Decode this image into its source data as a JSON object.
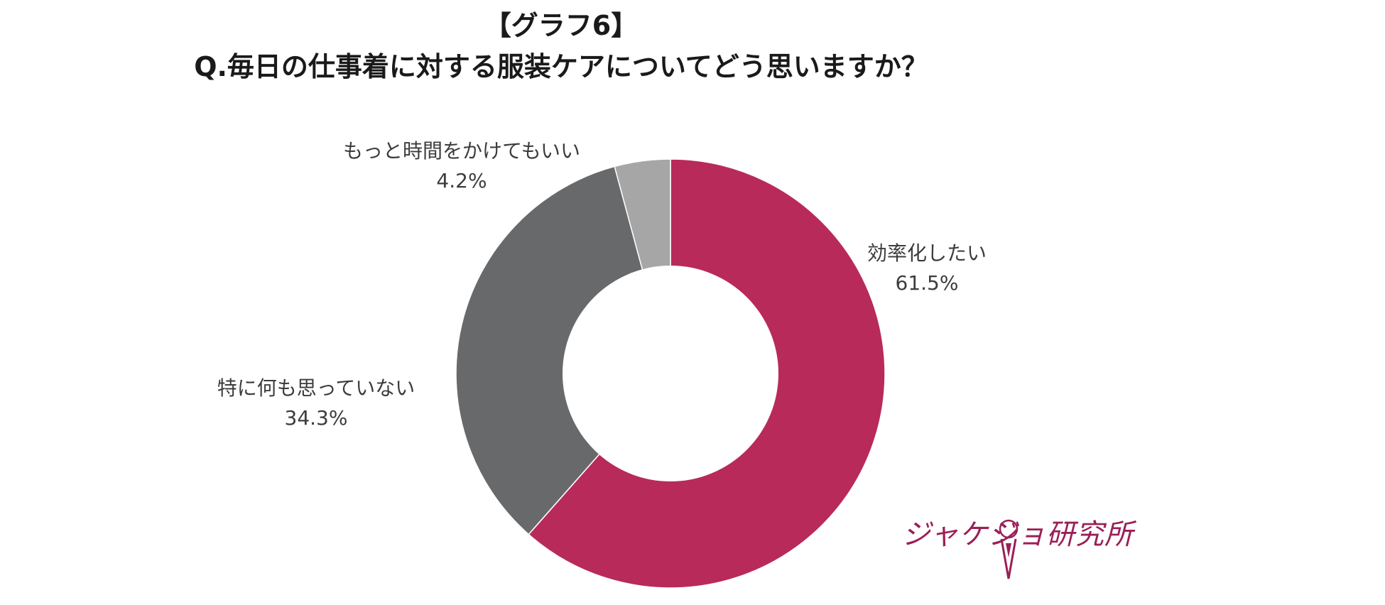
{
  "header": {
    "line1": "【グラフ6】",
    "line2": "Q.毎日の仕事着に対する服装ケアについてどう思いますか？"
  },
  "chart_data": {
    "type": "pie",
    "variant": "donut",
    "title": "Q.毎日の仕事着に対する服装ケアについてどう思いますか？",
    "slices": [
      {
        "label": "効率化したい",
        "value": 61.5,
        "display": "61.5%",
        "color": "#b82a5a"
      },
      {
        "label": "特に何も思っていない",
        "value": 34.3,
        "display": "34.3%",
        "color": "#68696b"
      },
      {
        "label": "もっと時間をかけてもいい",
        "value": 4.2,
        "display": "4.2%",
        "color": "#a6a6a6"
      }
    ]
  },
  "logo": {
    "text": "ジャケジョ研究所",
    "color": "#9b1f57"
  }
}
